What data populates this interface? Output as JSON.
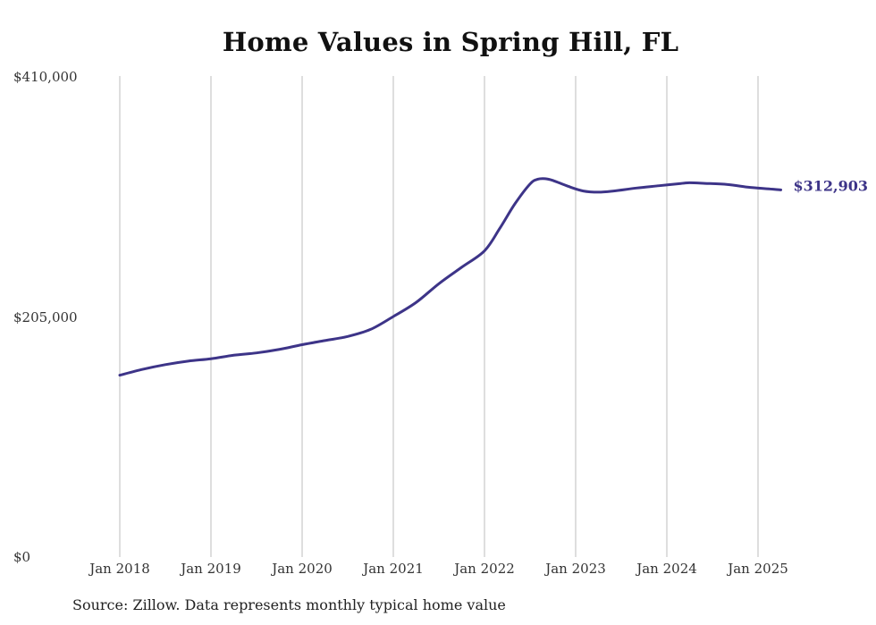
{
  "chart_data": {
    "type": "line",
    "title": "Home Values in Spring Hill, FL",
    "xlabel": "",
    "ylabel": "",
    "ylim": [
      0,
      410000
    ],
    "y_ticks": [
      {
        "value": 0,
        "label": "$0"
      },
      {
        "value": 205000,
        "label": "$205,000"
      },
      {
        "value": 410000,
        "label": "$410,000"
      }
    ],
    "x_ticks": [
      {
        "value": "2018-01",
        "label": "Jan 2018"
      },
      {
        "value": "2019-01",
        "label": "Jan 2019"
      },
      {
        "value": "2020-01",
        "label": "Jan 2020"
      },
      {
        "value": "2021-01",
        "label": "Jan 2021"
      },
      {
        "value": "2022-01",
        "label": "Jan 2022"
      },
      {
        "value": "2023-01",
        "label": "Jan 2023"
      },
      {
        "value": "2024-01",
        "label": "Jan 2024"
      },
      {
        "value": "2025-01",
        "label": "Jan 2025"
      }
    ],
    "grid": "vertical",
    "line_color": "#3d3488",
    "end_label": "$312,903",
    "series": [
      {
        "values": [
          {
            "x": "2018-01",
            "y": 155000
          },
          {
            "x": "2018-04",
            "y": 160000
          },
          {
            "x": "2018-07",
            "y": 164000
          },
          {
            "x": "2018-10",
            "y": 167000
          },
          {
            "x": "2019-01",
            "y": 169000
          },
          {
            "x": "2019-04",
            "y": 172000
          },
          {
            "x": "2019-07",
            "y": 174000
          },
          {
            "x": "2019-10",
            "y": 177000
          },
          {
            "x": "2020-01",
            "y": 181000
          },
          {
            "x": "2020-04",
            "y": 184500
          },
          {
            "x": "2020-07",
            "y": 188000
          },
          {
            "x": "2020-10",
            "y": 194000
          },
          {
            "x": "2021-01",
            "y": 205000
          },
          {
            "x": "2021-04",
            "y": 217000
          },
          {
            "x": "2021-07",
            "y": 233000
          },
          {
            "x": "2021-10",
            "y": 247000
          },
          {
            "x": "2022-01",
            "y": 261000
          },
          {
            "x": "2022-03",
            "y": 280000
          },
          {
            "x": "2022-05",
            "y": 301000
          },
          {
            "x": "2022-07",
            "y": 318000
          },
          {
            "x": "2022-08",
            "y": 322000
          },
          {
            "x": "2022-09",
            "y": 322500
          },
          {
            "x": "2022-10",
            "y": 321000
          },
          {
            "x": "2022-12",
            "y": 316000
          },
          {
            "x": "2023-02",
            "y": 312000
          },
          {
            "x": "2023-04",
            "y": 311000
          },
          {
            "x": "2023-06",
            "y": 312000
          },
          {
            "x": "2023-09",
            "y": 314500
          },
          {
            "x": "2023-12",
            "y": 316500
          },
          {
            "x": "2024-03",
            "y": 318500
          },
          {
            "x": "2024-04",
            "y": 319000
          },
          {
            "x": "2024-06",
            "y": 318500
          },
          {
            "x": "2024-09",
            "y": 317500
          },
          {
            "x": "2024-12",
            "y": 315000
          },
          {
            "x": "2025-03",
            "y": 313500
          },
          {
            "x": "2025-04",
            "y": 312903
          }
        ]
      }
    ]
  },
  "source_note": "Source: Zillow. Data represents monthly typical home value"
}
